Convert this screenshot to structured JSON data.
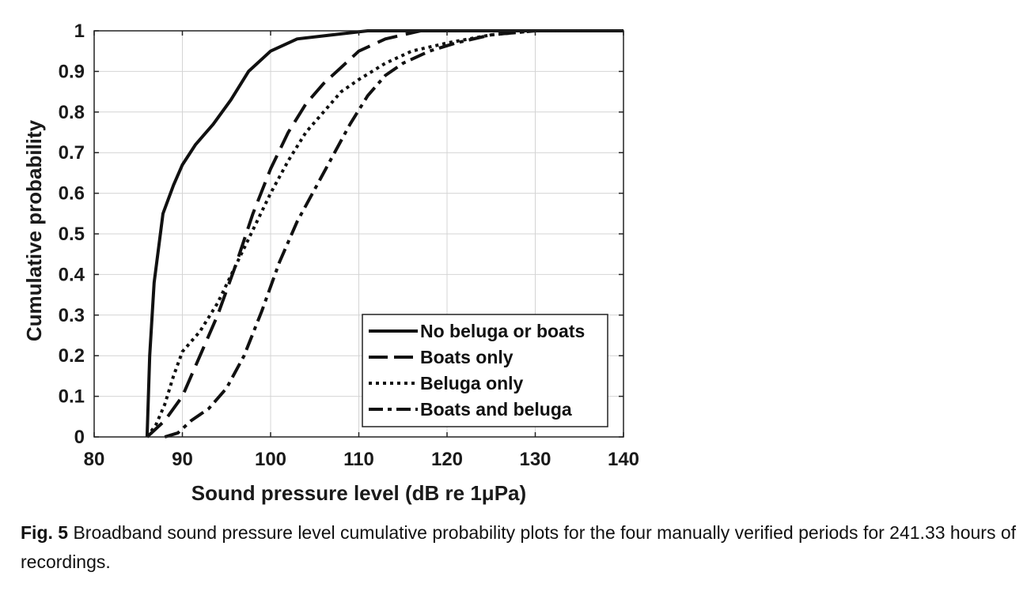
{
  "caption": {
    "label": "Fig. 5",
    "text": "Broadband sound pressure level cumulative probability plots for the four manually verified periods for 241.33 hours of recordings."
  },
  "chart_data": {
    "type": "line",
    "title": "",
    "xlabel": "Sound pressure level (dB re 1μPa)",
    "ylabel": "Cumulative probability",
    "xlim": [
      80,
      140
    ],
    "ylim": [
      0,
      1
    ],
    "xticks": [
      80,
      90,
      100,
      110,
      120,
      130,
      140
    ],
    "yticks": [
      0,
      0.1,
      0.2,
      0.3,
      0.4,
      0.5,
      0.6,
      0.7,
      0.8,
      0.9,
      1
    ],
    "ytick_labels": [
      "0",
      "0.1",
      "0.2",
      "0.3",
      "0.4",
      "0.5",
      "0.6",
      "0.7",
      "0.8",
      "0.9",
      "1"
    ],
    "grid": true,
    "legend_position": "bottom-right",
    "series": [
      {
        "name": "No beluga or boats",
        "style": "solid",
        "color": "#111111",
        "points": [
          [
            86,
            0
          ],
          [
            86.3,
            0.2
          ],
          [
            86.8,
            0.38
          ],
          [
            87.8,
            0.55
          ],
          [
            89,
            0.62
          ],
          [
            90,
            0.67
          ],
          [
            91.5,
            0.72
          ],
          [
            93.5,
            0.77
          ],
          [
            95.5,
            0.83
          ],
          [
            97.5,
            0.9
          ],
          [
            100,
            0.95
          ],
          [
            103,
            0.98
          ],
          [
            107,
            0.99
          ],
          [
            111,
            1.0
          ],
          [
            120,
            1.0
          ],
          [
            140,
            1.0
          ]
        ]
      },
      {
        "name": "Boats only",
        "style": "dashed",
        "color": "#111111",
        "points": [
          [
            86,
            0
          ],
          [
            88,
            0.04
          ],
          [
            90,
            0.1
          ],
          [
            92,
            0.2
          ],
          [
            94,
            0.3
          ],
          [
            96,
            0.42
          ],
          [
            98,
            0.55
          ],
          [
            100,
            0.66
          ],
          [
            102,
            0.75
          ],
          [
            104,
            0.82
          ],
          [
            106,
            0.87
          ],
          [
            108,
            0.91
          ],
          [
            110,
            0.95
          ],
          [
            113,
            0.98
          ],
          [
            117,
            1.0
          ],
          [
            140,
            1.0
          ]
        ]
      },
      {
        "name": "Beluga only",
        "style": "dotted",
        "color": "#111111",
        "points": [
          [
            86,
            0
          ],
          [
            87,
            0.03
          ],
          [
            88,
            0.08
          ],
          [
            89,
            0.15
          ],
          [
            90,
            0.21
          ],
          [
            92,
            0.26
          ],
          [
            94,
            0.33
          ],
          [
            96,
            0.42
          ],
          [
            98,
            0.51
          ],
          [
            100,
            0.6
          ],
          [
            102,
            0.68
          ],
          [
            104,
            0.75
          ],
          [
            106,
            0.8
          ],
          [
            108,
            0.85
          ],
          [
            110,
            0.88
          ],
          [
            113,
            0.92
          ],
          [
            116,
            0.95
          ],
          [
            120,
            0.97
          ],
          [
            125,
            0.99
          ],
          [
            130,
            1.0
          ],
          [
            140,
            1.0
          ]
        ]
      },
      {
        "name": "Boats and beluga",
        "style": "dashdot",
        "color": "#111111",
        "points": [
          [
            88,
            0
          ],
          [
            89.5,
            0.01
          ],
          [
            91,
            0.04
          ],
          [
            93,
            0.07
          ],
          [
            95,
            0.12
          ],
          [
            97,
            0.2
          ],
          [
            99,
            0.31
          ],
          [
            101,
            0.43
          ],
          [
            103,
            0.53
          ],
          [
            105,
            0.61
          ],
          [
            107,
            0.69
          ],
          [
            109,
            0.77
          ],
          [
            111,
            0.84
          ],
          [
            113,
            0.89
          ],
          [
            115,
            0.92
          ],
          [
            118,
            0.95
          ],
          [
            121,
            0.97
          ],
          [
            125,
            0.99
          ],
          [
            130,
            1.0
          ],
          [
            140,
            1.0
          ]
        ]
      }
    ]
  }
}
